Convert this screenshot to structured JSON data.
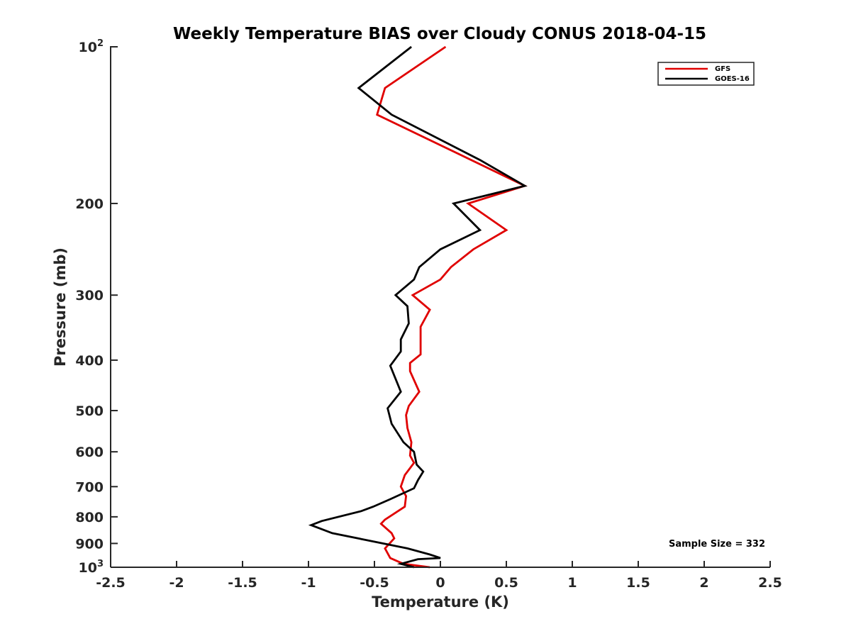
{
  "chart_data": {
    "type": "line",
    "title": "Weekly Temperature BIAS over Cloudy CONUS 2018-04-15",
    "xlabel": "Temperature (K)",
    "ylabel": "Pressure (mb)",
    "xlim": [
      -2.5,
      2.5
    ],
    "ylim": [
      100,
      1000
    ],
    "yscale": "log",
    "y_reversed": true,
    "grid": false,
    "legend_position": "top-right",
    "x_ticks": [
      {
        "value": -2.5,
        "label": "-2.5"
      },
      {
        "value": -2,
        "label": "-2"
      },
      {
        "value": -1.5,
        "label": "-1.5"
      },
      {
        "value": -1,
        "label": "-1"
      },
      {
        "value": -0.5,
        "label": "-0.5"
      },
      {
        "value": 0,
        "label": "0"
      },
      {
        "value": 0.5,
        "label": "0.5"
      },
      {
        "value": 1,
        "label": "1"
      },
      {
        "value": 1.5,
        "label": "1.5"
      },
      {
        "value": 2,
        "label": "2"
      },
      {
        "value": 2.5,
        "label": "2.5"
      }
    ],
    "y_ticks": [
      {
        "value": 100,
        "label": "10",
        "exponent": "2"
      },
      {
        "value": 200,
        "label": "200"
      },
      {
        "value": 300,
        "label": "300"
      },
      {
        "value": 400,
        "label": "400"
      },
      {
        "value": 500,
        "label": "500"
      },
      {
        "value": 600,
        "label": "600"
      },
      {
        "value": 700,
        "label": "700"
      },
      {
        "value": 800,
        "label": "800"
      },
      {
        "value": 900,
        "label": "900"
      },
      {
        "value": 1000,
        "label": "10",
        "exponent": "3"
      }
    ],
    "series": [
      {
        "name": "GFS",
        "color": "#e00000",
        "points": [
          [
            0.04,
            100
          ],
          [
            -0.42,
            120
          ],
          [
            -0.48,
            135
          ],
          [
            0.64,
            185
          ],
          [
            0.21,
            200
          ],
          [
            0.5,
            225
          ],
          [
            0.25,
            245
          ],
          [
            0.08,
            265
          ],
          [
            0.0,
            280
          ],
          [
            -0.21,
            300
          ],
          [
            -0.08,
            320
          ],
          [
            -0.15,
            345
          ],
          [
            -0.15,
            375
          ],
          [
            -0.15,
            390
          ],
          [
            -0.23,
            405
          ],
          [
            -0.23,
            420
          ],
          [
            -0.16,
            460
          ],
          [
            -0.24,
            490
          ],
          [
            -0.26,
            510
          ],
          [
            -0.25,
            540
          ],
          [
            -0.22,
            575
          ],
          [
            -0.23,
            610
          ],
          [
            -0.2,
            630
          ],
          [
            -0.27,
            665
          ],
          [
            -0.3,
            700
          ],
          [
            -0.26,
            730
          ],
          [
            -0.27,
            765
          ],
          [
            -0.42,
            810
          ],
          [
            -0.45,
            825
          ],
          [
            -0.37,
            860
          ],
          [
            -0.35,
            880
          ],
          [
            -0.42,
            920
          ],
          [
            -0.38,
            960
          ],
          [
            -0.28,
            985
          ],
          [
            -0.08,
            1000
          ]
        ]
      },
      {
        "name": "GOES-16",
        "color": "#000000",
        "points": [
          [
            -0.22,
            100
          ],
          [
            -0.62,
            120
          ],
          [
            -0.37,
            135
          ],
          [
            0.3,
            165
          ],
          [
            0.64,
            185
          ],
          [
            0.1,
            200
          ],
          [
            0.3,
            225
          ],
          [
            0.0,
            245
          ],
          [
            -0.16,
            265
          ],
          [
            -0.2,
            280
          ],
          [
            -0.34,
            300
          ],
          [
            -0.25,
            315
          ],
          [
            -0.24,
            340
          ],
          [
            -0.3,
            365
          ],
          [
            -0.3,
            385
          ],
          [
            -0.38,
            410
          ],
          [
            -0.3,
            460
          ],
          [
            -0.4,
            495
          ],
          [
            -0.37,
            530
          ],
          [
            -0.28,
            575
          ],
          [
            -0.2,
            600
          ],
          [
            -0.18,
            635
          ],
          [
            -0.13,
            655
          ],
          [
            -0.17,
            680
          ],
          [
            -0.2,
            705
          ],
          [
            -0.38,
            740
          ],
          [
            -0.51,
            765
          ],
          [
            -0.6,
            780
          ],
          [
            -0.9,
            815
          ],
          [
            -0.98,
            830
          ],
          [
            -0.82,
            860
          ],
          [
            -0.25,
            920
          ],
          [
            -0.08,
            945
          ],
          [
            0.0,
            960
          ],
          [
            -0.17,
            965
          ],
          [
            -0.3,
            985
          ],
          [
            -0.2,
            1000
          ]
        ]
      }
    ],
    "annotations": [
      {
        "text": "Sample Size = 332"
      }
    ]
  },
  "colors": {
    "gfs": "#e00000",
    "goes16": "#000000",
    "axis": "#262626",
    "background": "#ffffff"
  }
}
